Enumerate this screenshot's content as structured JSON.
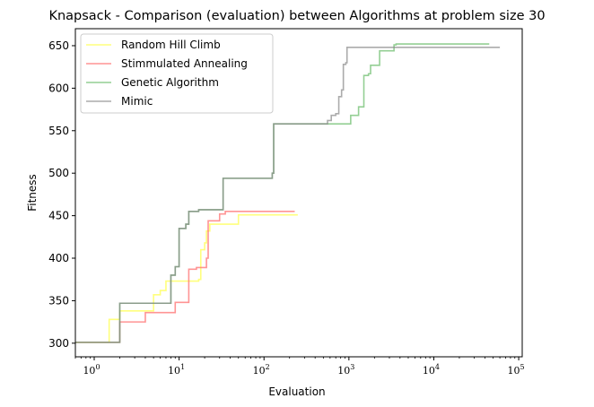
{
  "chart_data": {
    "type": "line",
    "title": "Knapsack - Comparison (evaluation) between Algorithms at problem size 30",
    "xlabel": "Evaluation",
    "ylabel": "Fitness",
    "xscale": "log",
    "xlim": [
      0.6,
      110000
    ],
    "ylim": [
      284,
      670
    ],
    "yticks": [
      300,
      350,
      400,
      450,
      500,
      550,
      600,
      650
    ],
    "xticks": [
      {
        "value": 1,
        "base": "10",
        "exp": "0"
      },
      {
        "value": 10,
        "base": "10",
        "exp": "1"
      },
      {
        "value": 100,
        "base": "10",
        "exp": "2"
      },
      {
        "value": 1000,
        "base": "10",
        "exp": "3"
      },
      {
        "value": 10000,
        "base": "10",
        "exp": "4"
      },
      {
        "value": 100000,
        "base": "10",
        "exp": "5"
      }
    ],
    "legend_position": "top-left",
    "series": [
      {
        "name": "Random Hill Climb",
        "color": "#ffff66",
        "points": [
          [
            0.6,
            301
          ],
          [
            1,
            301
          ],
          [
            1.5,
            328
          ],
          [
            2,
            338
          ],
          [
            4,
            338
          ],
          [
            5,
            357
          ],
          [
            6,
            362
          ],
          [
            7,
            373
          ],
          [
            16,
            373
          ],
          [
            17,
            375
          ],
          [
            18,
            410
          ],
          [
            20,
            418
          ],
          [
            21,
            432
          ],
          [
            23,
            440
          ],
          [
            45,
            440
          ],
          [
            50,
            451
          ],
          [
            250,
            451
          ]
        ]
      },
      {
        "name": "Stimmulated Annealing",
        "color": "#ff6666",
        "points": [
          [
            0.6,
            301
          ],
          [
            1,
            301
          ],
          [
            2,
            325
          ],
          [
            3,
            325
          ],
          [
            4,
            336
          ],
          [
            8,
            336
          ],
          [
            9,
            348
          ],
          [
            12,
            348
          ],
          [
            13,
            387
          ],
          [
            16,
            389
          ],
          [
            20,
            389
          ],
          [
            21,
            400
          ],
          [
            22,
            444
          ],
          [
            28,
            444
          ],
          [
            30,
            452
          ],
          [
            35,
            455
          ],
          [
            230,
            455
          ]
        ]
      },
      {
        "name": "Genetic Algorithm",
        "color": "#66bb66",
        "points": [
          [
            0.6,
            301
          ],
          [
            1,
            301
          ],
          [
            2,
            347
          ],
          [
            7,
            347
          ],
          [
            8,
            380
          ],
          [
            9,
            390
          ],
          [
            10,
            435
          ],
          [
            12,
            440
          ],
          [
            13,
            455
          ],
          [
            16,
            455
          ],
          [
            17,
            457
          ],
          [
            32,
            457
          ],
          [
            33,
            494
          ],
          [
            120,
            494
          ],
          [
            125,
            500
          ],
          [
            130,
            558
          ],
          [
            1000,
            558
          ],
          [
            1050,
            568
          ],
          [
            1200,
            568
          ],
          [
            1300,
            578
          ],
          [
            1500,
            615
          ],
          [
            1700,
            617
          ],
          [
            1800,
            627
          ],
          [
            2200,
            627
          ],
          [
            2300,
            644
          ],
          [
            3300,
            644
          ],
          [
            3400,
            651
          ],
          [
            3600,
            652
          ],
          [
            45000,
            652
          ]
        ]
      },
      {
        "name": "Mimic",
        "color": "#888888",
        "points": [
          [
            0.6,
            301
          ],
          [
            1,
            301
          ],
          [
            2,
            347
          ],
          [
            7,
            347
          ],
          [
            8,
            380
          ],
          [
            9,
            390
          ],
          [
            10,
            435
          ],
          [
            12,
            440
          ],
          [
            13,
            455
          ],
          [
            16,
            455
          ],
          [
            17,
            457
          ],
          [
            32,
            457
          ],
          [
            33,
            494
          ],
          [
            120,
            494
          ],
          [
            125,
            500
          ],
          [
            130,
            558
          ],
          [
            500,
            558
          ],
          [
            560,
            562
          ],
          [
            620,
            568
          ],
          [
            700,
            570
          ],
          [
            760,
            590
          ],
          [
            820,
            598
          ],
          [
            860,
            628
          ],
          [
            920,
            630
          ],
          [
            950,
            648
          ],
          [
            60000,
            648
          ]
        ]
      }
    ]
  }
}
